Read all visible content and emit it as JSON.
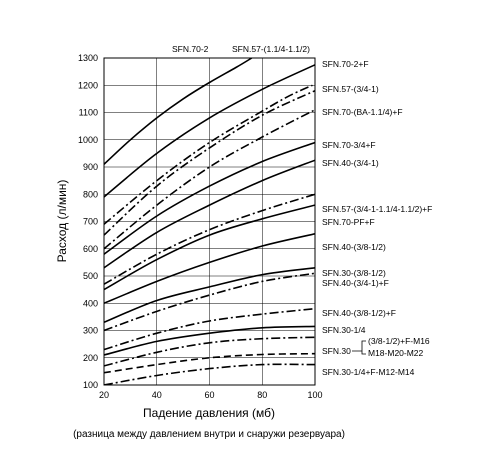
{
  "chart_data": {
    "type": "line",
    "xlabel": "Падение давления (мб)",
    "xsub": "(разница между давлением внутри и снаружи резервуара)",
    "ylabel": "Расход (л/мин)",
    "xlim": [
      20,
      100
    ],
    "ylim": [
      100,
      1300
    ],
    "xticks": [
      20,
      40,
      60,
      80,
      100
    ],
    "yticks": [
      100,
      200,
      300,
      400,
      500,
      600,
      700,
      800,
      900,
      1000,
      1100,
      1200,
      1300
    ],
    "grid": true,
    "top_labels": [
      "SFN.70-2",
      "SFN.57-(1.1/4-1.1/2)"
    ],
    "bracket": {
      "label": "SFN.30",
      "items": [
        "(3/8-1/2)+F-M16",
        "M18-M20-M22"
      ]
    },
    "series": [
      {
        "name": "SFN.70-2",
        "style": "solid",
        "x": [
          20,
          30,
          40,
          50,
          60,
          70,
          76
        ],
        "y": [
          910,
          1000,
          1080,
          1150,
          1210,
          1265,
          1300
        ]
      },
      {
        "name": "SFN.57-(1.1/4-1.1/2)",
        "style": "dashdot",
        "x": [
          20,
          40,
          60,
          80,
          90,
          99
        ],
        "y": [
          690,
          850,
          990,
          1105,
          1160,
          1200
        ]
      },
      {
        "name": "SFN.70-2+F",
        "style": "solid",
        "x": [
          20,
          40,
          60,
          80,
          100
        ],
        "y": [
          790,
          950,
          1080,
          1185,
          1275
        ]
      },
      {
        "name": "SFN.57-(3/4-1)",
        "style": "dashdot",
        "x": [
          20,
          40,
          60,
          80,
          100
        ],
        "y": [
          650,
          830,
          970,
          1090,
          1180
        ]
      },
      {
        "name": "SFN.70-(BA-1.1/4)+F",
        "style": "dashdot",
        "x": [
          20,
          40,
          60,
          80,
          100
        ],
        "y": [
          600,
          760,
          900,
          1010,
          1110
        ]
      },
      {
        "name": "SFN.70-3/4+F",
        "style": "solid",
        "x": [
          20,
          40,
          60,
          80,
          100
        ],
        "y": [
          580,
          720,
          830,
          920,
          990
        ]
      },
      {
        "name": "SFN.40-(3/4-1)",
        "style": "solid",
        "x": [
          20,
          40,
          60,
          80,
          100
        ],
        "y": [
          530,
          660,
          760,
          850,
          925
        ]
      },
      {
        "name": "SFN.57-(3/4-1-1.1/4-1.1/2)+F",
        "style": "dashdot",
        "x": [
          20,
          40,
          60,
          80,
          100
        ],
        "y": [
          470,
          580,
          670,
          740,
          800
        ]
      },
      {
        "name": "SFN.70-PF+F",
        "style": "solid",
        "x": [
          20,
          40,
          60,
          80,
          100
        ],
        "y": [
          450,
          560,
          650,
          710,
          760
        ]
      },
      {
        "name": "SFN.40-(3/8-1/2)",
        "style": "solid",
        "x": [
          20,
          40,
          60,
          80,
          100
        ],
        "y": [
          400,
          480,
          550,
          610,
          655
        ]
      },
      {
        "name": "SFN.30-(3/8-1/2)",
        "style": "solid",
        "x": [
          20,
          40,
          60,
          80,
          100
        ],
        "y": [
          330,
          410,
          460,
          505,
          530
        ]
      },
      {
        "name": "SFN.40-(3/4-1)+F",
        "style": "dashdot",
        "x": [
          20,
          40,
          60,
          80,
          100
        ],
        "y": [
          300,
          370,
          430,
          480,
          510
        ]
      },
      {
        "name": "SFN.40-(3/8-1/2)+F",
        "style": "dashdot",
        "x": [
          20,
          40,
          60,
          80,
          100
        ],
        "y": [
          230,
          290,
          335,
          360,
          380
        ]
      },
      {
        "name": "SFN.30-1/4",
        "style": "solid",
        "x": [
          20,
          40,
          60,
          80,
          100
        ],
        "y": [
          210,
          260,
          290,
          310,
          315
        ]
      },
      {
        "name": "SFN.30-(3/8-1/2)+F-M16",
        "style": "dashdot",
        "x": [
          20,
          40,
          60,
          80,
          100
        ],
        "y": [
          170,
          220,
          255,
          270,
          275
        ]
      },
      {
        "name": "SFN.30-M18-M20-M22",
        "style": "dashed",
        "x": [
          20,
          40,
          60,
          80,
          100
        ],
        "y": [
          145,
          175,
          200,
          212,
          215
        ]
      },
      {
        "name": "SFN.30-1/4+F-M12-M14",
        "style": "dashdot",
        "x": [
          20,
          40,
          60,
          80,
          100
        ],
        "y": [
          100,
          135,
          160,
          175,
          175
        ]
      }
    ]
  }
}
